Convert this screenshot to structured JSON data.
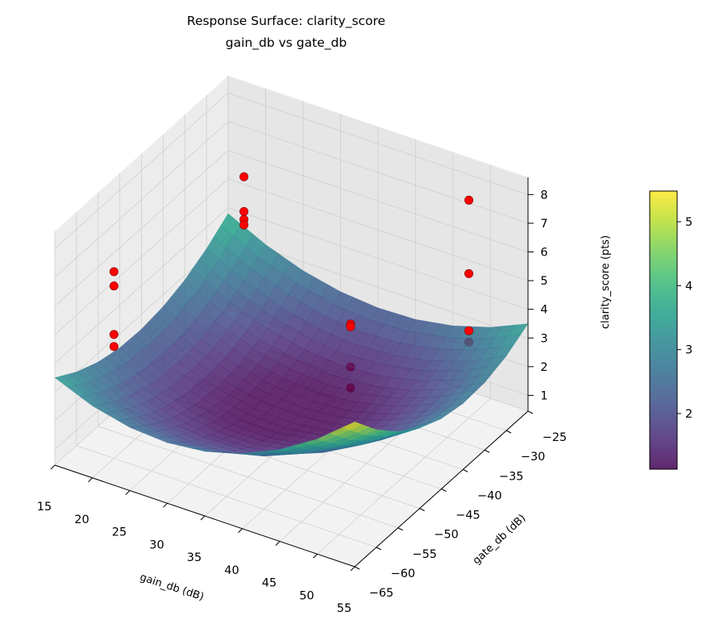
{
  "chart_data": {
    "type": "surface3d",
    "title": "Response Surface: clarity_score",
    "subtitle": "gain_db vs gate_db",
    "xlabel": "gain_db (dB)",
    "ylabel": "gate_db (dB)",
    "zlabel": "clarity_score (pts)",
    "xlim": [
      15,
      55
    ],
    "ylim": [
      -65,
      -25
    ],
    "zlim": [
      0.45,
      8.6
    ],
    "xticks": [
      15,
      20,
      25,
      30,
      35,
      40,
      45,
      50,
      55
    ],
    "yticks": [
      -25,
      -30,
      -35,
      -40,
      -45,
      -50,
      -55,
      -60,
      -65
    ],
    "zticks": [
      1,
      2,
      3,
      4,
      5,
      6,
      7,
      8
    ],
    "grid": true,
    "colormap": "viridis",
    "colorbar": {
      "vmin": 1.13,
      "vmax": 5.48,
      "ticks": [
        2,
        3,
        4,
        5
      ],
      "placement": "right"
    },
    "surface": {
      "x": [
        15,
        20,
        25,
        30,
        35,
        40,
        45,
        50,
        55
      ],
      "y": [
        -65,
        -60,
        -55,
        -50,
        -45,
        -40,
        -35,
        -30,
        -25
      ],
      "z": [
        [
          3.5,
          2.96,
          2.65,
          2.56,
          2.7,
          3.06,
          3.65,
          4.46,
          5.5
        ],
        [
          3.02,
          2.43,
          2.07,
          1.92,
          1.99,
          2.3,
          2.83,
          3.58,
          4.55
        ],
        [
          2.69,
          2.06,
          1.64,
          1.45,
          1.47,
          1.73,
          2.19,
          2.89,
          3.8
        ],
        [
          2.51,
          1.85,
          1.4,
          1.16,
          1.14,
          1.35,
          1.77,
          2.4,
          3.25
        ],
        [
          2.48,
          1.79,
          1.31,
          1.05,
          0.99,
          1.15,
          1.52,
          2.1,
          2.9
        ],
        [
          2.59,
          1.89,
          1.41,
          1.12,
          1.03,
          1.16,
          1.49,
          2.02,
          2.75
        ],
        [
          2.84,
          2.16,
          1.66,
          1.37,
          1.26,
          1.36,
          1.64,
          2.13,
          2.8
        ],
        [
          3.25,
          2.58,
          2.1,
          1.79,
          1.67,
          1.75,
          2.0,
          2.43,
          3.05
        ],
        [
          3.8,
          3.16,
          2.69,
          2.4,
          2.28,
          2.32,
          2.54,
          2.93,
          3.5
        ]
      ]
    },
    "points": {
      "color": "#ff0000",
      "x": [
        20,
        20,
        20,
        20,
        20,
        20,
        20,
        20,
        50,
        50,
        50,
        50,
        40,
        40,
        40,
        40
      ],
      "y": [
        -60,
        -60,
        -60,
        -60,
        -30,
        -30,
        -30,
        -30,
        -30,
        -30,
        -30,
        -30,
        -40,
        -40,
        -40,
        -40
      ],
      "z": [
        6.96,
        6.46,
        4.77,
        4.35,
        6.2,
        4.99,
        4.71,
        4.52,
        8.04,
        5.48,
        3.49,
        3.09,
        4.19,
        4.1,
        2.7,
        1.97
      ]
    }
  }
}
